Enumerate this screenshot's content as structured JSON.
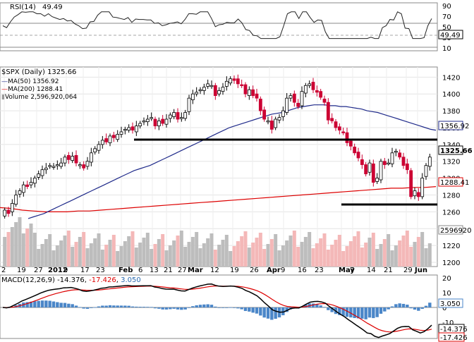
{
  "rsi": {
    "title": "RSI(14)",
    "value": "49.49",
    "ticks": [
      "90",
      "70",
      "50",
      "30",
      "10"
    ]
  },
  "price": {
    "title": "$SPX (Daily)",
    "last": "1325.66",
    "ma50_label": "MA(50)",
    "ma50_value": "1356.92",
    "ma200_label": "MA(200)",
    "ma200_value": "1288.41",
    "volume_label": "Volume",
    "volume_value": "2,596,920,064",
    "volume_tag": "2596920",
    "ticks": [
      "1420",
      "1400",
      "1380",
      "1360",
      "1340",
      "1320",
      "1300",
      "1280",
      "1260",
      "1240",
      "1220",
      "1200"
    ],
    "xticks": [
      "2",
      "19",
      "27",
      "2012",
      "9",
      "17",
      "23",
      "Feb",
      "6",
      "13",
      "21",
      "27",
      "Mar",
      "12",
      "19",
      "26",
      "Apr",
      "9",
      "16",
      "23",
      "May",
      "7",
      "14",
      "21",
      "29",
      "Jun"
    ]
  },
  "macd": {
    "title": "MACD(12,26,9)",
    "macd_value": "-14.376",
    "signal_value": "-17.426",
    "hist_value": "3.050",
    "ticks": [
      "20",
      "10",
      "0",
      "-10",
      "-20"
    ],
    "tag_hist": "3.050",
    "tag_macd": "-14.376",
    "tag_signal": "-17.426"
  },
  "colors": {
    "up": "#000000",
    "down": "#cc0033",
    "ma50": "#1f2a8a",
    "ma200": "#dd0000",
    "vol_up": "#bdbdbd",
    "vol_down": "#f4b8b8",
    "rsi_line": "#222222",
    "macd_line": "#000000",
    "signal_line": "#dd0000",
    "hist": "#4a86c8",
    "support": "#000000"
  },
  "chart_data": {
    "type": "candlestick",
    "title": "$SPX (Daily)",
    "ylim": [
      1200,
      1430
    ],
    "horizontal_levels": [
      1340,
      1262
    ],
    "close_series": [
      1262,
      1258,
      1270,
      1280,
      1285,
      1292,
      1290,
      1295,
      1300,
      1305,
      1310,
      1312,
      1315,
      1314,
      1316,
      1318,
      1325,
      1322,
      1326,
      1318,
      1316,
      1312,
      1320,
      1330,
      1335,
      1340,
      1345,
      1343,
      1350,
      1348,
      1352,
      1355,
      1358,
      1360,
      1357,
      1362,
      1365,
      1368,
      1370,
      1372,
      1362,
      1368,
      1365,
      1370,
      1375,
      1378,
      1370,
      1372,
      1378,
      1395,
      1400,
      1402,
      1405,
      1408,
      1412,
      1410,
      1398,
      1404,
      1408,
      1415,
      1418,
      1416,
      1412,
      1410,
      1400,
      1405,
      1398,
      1395,
      1380,
      1370,
      1368,
      1358,
      1370,
      1372,
      1380,
      1395,
      1398,
      1390,
      1385,
      1403,
      1410,
      1412,
      1405,
      1402,
      1396,
      1390,
      1369,
      1368,
      1360,
      1357,
      1354,
      1342,
      1338,
      1330,
      1324,
      1316,
      1305,
      1318,
      1295,
      1300,
      1320,
      1316,
      1318,
      1330,
      1332,
      1325,
      1315,
      1310,
      1278,
      1285,
      1278,
      1300,
      1315,
      1325
    ],
    "ma50": [
      1252,
      1254,
      1256,
      1258,
      1261,
      1264,
      1267,
      1270,
      1273,
      1276,
      1279,
      1282,
      1285,
      1288,
      1291,
      1294,
      1297,
      1300,
      1303,
      1306,
      1309,
      1311,
      1313,
      1315,
      1318,
      1321,
      1324,
      1327,
      1330,
      1333,
      1336,
      1339,
      1342,
      1345,
      1348,
      1351,
      1354,
      1357,
      1360,
      1362,
      1364,
      1366,
      1368,
      1370,
      1372,
      1374,
      1376,
      1377,
      1378,
      1380,
      1382,
      1384,
      1385,
      1386,
      1387,
      1387,
      1387,
      1386,
      1386,
      1385,
      1385,
      1384,
      1383,
      1382,
      1380,
      1379,
      1378,
      1376,
      1374,
      1372,
      1370,
      1368,
      1366,
      1364,
      1362,
      1360,
      1358,
      1357
    ],
    "ma200": [
      1265,
      1264,
      1262,
      1261,
      1260,
      1260,
      1260,
      1261,
      1261,
      1262,
      1263,
      1264,
      1265,
      1266,
      1267,
      1268,
      1269,
      1270,
      1271,
      1272,
      1273,
      1274,
      1275,
      1276,
      1277,
      1278,
      1279,
      1280,
      1281,
      1282,
      1283,
      1284,
      1285,
      1286,
      1287,
      1288,
      1288,
      1289,
      1289,
      1290
    ],
    "volume": "2,596,920,064",
    "ma50_last": 1356.92,
    "ma200_last": 1288.41,
    "rsi_last": 49.49,
    "macd_last": -14.376,
    "signal_last": -17.426,
    "hist_last": 3.05
  }
}
